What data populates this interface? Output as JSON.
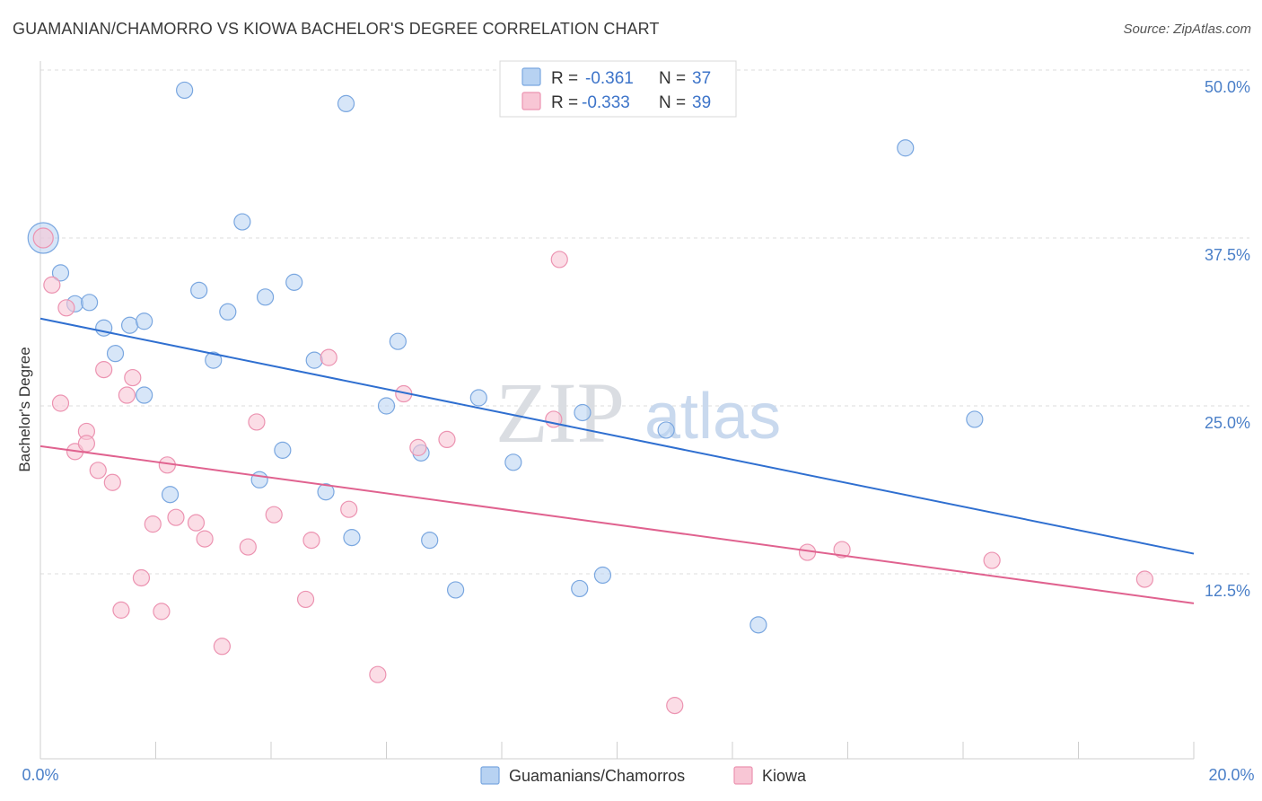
{
  "header": {
    "title": "GUAMANIAN/CHAMORRO VS KIOWA BACHELOR'S DEGREE CORRELATION CHART",
    "source": "Source: ZipAtlas.com"
  },
  "watermark": {
    "zip": "ZIP",
    "atlas": "atlas"
  },
  "legend": {
    "rows": [
      {
        "r_label": "R =",
        "r_value": "-0.361",
        "n_label": "N =",
        "n_value": "37",
        "color": "#b7d2f2",
        "border": "#7aa7e0"
      },
      {
        "r_label": "R =",
        "r_value": "-0.333",
        "n_label": "N =",
        "n_value": "39",
        "color": "#f8c6d5",
        "border": "#ec93b1"
      }
    ]
  },
  "bottom_legend": {
    "items": [
      {
        "label": "Guamanians/Chamorros",
        "color": "#b7d2f2",
        "border": "#7aa7e0"
      },
      {
        "label": "Kiowa",
        "color": "#f8c6d5",
        "border": "#ec93b1"
      }
    ]
  },
  "chart_data": {
    "type": "scatter",
    "title": "GUAMANIAN/CHAMORRO VS KIOWA BACHELOR'S DEGREE CORRELATION CHART",
    "xlabel": "",
    "ylabel": "Bachelor's Degree",
    "xlim": [
      0,
      20
    ],
    "ylim": [
      0,
      50
    ],
    "x_ticks": [
      "0.0%",
      "20.0%"
    ],
    "y_ticks": [
      {
        "value": 12.5,
        "label": "12.5%"
      },
      {
        "value": 25.0,
        "label": "25.0%"
      },
      {
        "value": 37.5,
        "label": "37.5%"
      },
      {
        "value": 50.0,
        "label": "50.0%"
      }
    ],
    "grid": true,
    "legend_position": "top-center",
    "series": [
      {
        "name": "Guamanians/Chamorros",
        "color": "#7aa7e0",
        "fill": "#b7d2f2",
        "line_color": "#2f6fd0",
        "trend": {
          "x": [
            0,
            20
          ],
          "y": [
            31.5,
            14.0
          ]
        },
        "points": [
          [
            0.05,
            37.5
          ],
          [
            0.35,
            34.9
          ],
          [
            0.6,
            32.6
          ],
          [
            0.85,
            32.7
          ],
          [
            1.1,
            30.8
          ],
          [
            1.55,
            31.0
          ],
          [
            1.3,
            28.9
          ],
          [
            1.8,
            31.3
          ],
          [
            1.8,
            25.8
          ],
          [
            2.25,
            18.4
          ],
          [
            2.5,
            48.5
          ],
          [
            2.75,
            33.6
          ],
          [
            3.0,
            28.4
          ],
          [
            3.25,
            32.0
          ],
          [
            3.5,
            38.7
          ],
          [
            3.9,
            33.1
          ],
          [
            3.8,
            19.5
          ],
          [
            4.2,
            21.7
          ],
          [
            4.4,
            34.2
          ],
          [
            4.75,
            28.4
          ],
          [
            4.95,
            18.6
          ],
          [
            5.3,
            47.5
          ],
          [
            5.4,
            15.2
          ],
          [
            6.0,
            25.0
          ],
          [
            6.2,
            29.8
          ],
          [
            6.6,
            21.5
          ],
          [
            6.75,
            15.0
          ],
          [
            7.2,
            11.3
          ],
          [
            7.6,
            25.6
          ],
          [
            8.2,
            20.8
          ],
          [
            9.35,
            11.4
          ],
          [
            9.4,
            24.5
          ],
          [
            9.75,
            12.4
          ],
          [
            10.85,
            23.2
          ],
          [
            12.45,
            8.7
          ],
          [
            15.0,
            44.2
          ],
          [
            16.2,
            24.0
          ]
        ]
      },
      {
        "name": "Kiowa",
        "color": "#ec93b1",
        "fill": "#f8c6d5",
        "line_color": "#e0628f",
        "trend": {
          "x": [
            0,
            20
          ],
          "y": [
            22.0,
            10.3
          ]
        },
        "points": [
          [
            0.05,
            37.5
          ],
          [
            0.2,
            34.0
          ],
          [
            0.35,
            25.2
          ],
          [
            0.45,
            32.3
          ],
          [
            0.6,
            21.6
          ],
          [
            0.8,
            23.1
          ],
          [
            0.8,
            22.2
          ],
          [
            1.0,
            20.2
          ],
          [
            1.1,
            27.7
          ],
          [
            1.25,
            19.3
          ],
          [
            1.4,
            9.8
          ],
          [
            1.5,
            25.8
          ],
          [
            1.6,
            27.1
          ],
          [
            1.75,
            12.2
          ],
          [
            1.95,
            16.2
          ],
          [
            2.1,
            9.7
          ],
          [
            2.2,
            20.6
          ],
          [
            2.35,
            16.7
          ],
          [
            2.7,
            16.3
          ],
          [
            2.85,
            15.1
          ],
          [
            3.15,
            7.1
          ],
          [
            3.6,
            14.5
          ],
          [
            3.75,
            23.8
          ],
          [
            4.05,
            16.9
          ],
          [
            4.6,
            10.6
          ],
          [
            4.7,
            15.0
          ],
          [
            5.0,
            28.6
          ],
          [
            5.35,
            17.3
          ],
          [
            5.85,
            5.0
          ],
          [
            6.3,
            25.9
          ],
          [
            6.55,
            21.9
          ],
          [
            7.05,
            22.5
          ],
          [
            8.9,
            24.0
          ],
          [
            9.0,
            35.9
          ],
          [
            11.0,
            2.7
          ],
          [
            13.3,
            14.1
          ],
          [
            13.9,
            14.3
          ],
          [
            16.5,
            13.5
          ],
          [
            19.15,
            12.1
          ]
        ]
      }
    ]
  }
}
